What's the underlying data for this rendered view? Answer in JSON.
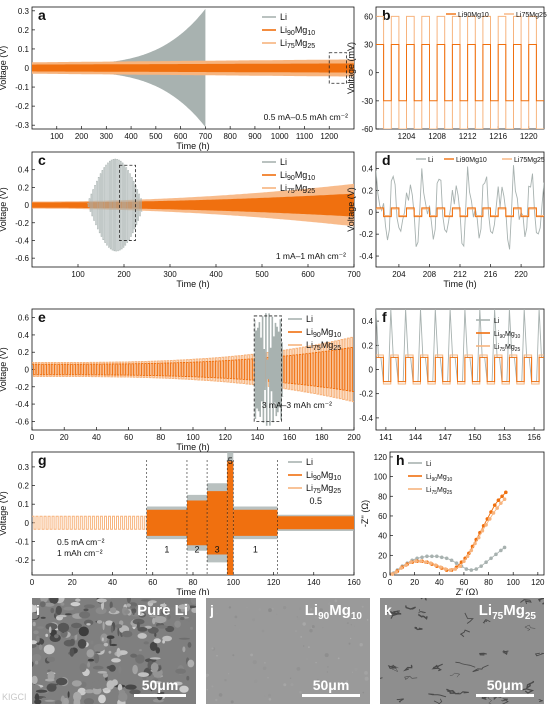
{
  "colors": {
    "li": "#a8b2b0",
    "mg10": "#f0700f",
    "mg25": "#f7b47e",
    "dash": "#222222"
  },
  "chart_data": [
    {
      "id": "a",
      "type": "line",
      "title": "",
      "xlabel": "Time (h)",
      "ylabel": "Voltage (V)",
      "xlim": [
        0,
        1300
      ],
      "ylim": [
        -0.32,
        0.32
      ],
      "xticks": [
        100,
        200,
        300,
        400,
        500,
        600,
        700,
        800,
        900,
        1000,
        1100,
        1200
      ],
      "yticks": [
        -0.3,
        -0.2,
        -0.1,
        0.0,
        0.1,
        0.2,
        0.3
      ],
      "series": [
        {
          "name": "Li",
          "li_end_h": 700
        },
        {
          "name": "Li90Mg10"
        },
        {
          "name": "Li75Mg25"
        }
      ],
      "annotations": [
        "0.5 mA–0.5 mAh cm⁻²"
      ],
      "inset_box_x": [
        1200,
        1270
      ],
      "legend": "top-right"
    },
    {
      "id": "b",
      "type": "line",
      "title": "",
      "xlabel": "",
      "ylabel": "Voltage (mV)",
      "xlim": [
        1200,
        1222
      ],
      "ylim": [
        -60,
        70
      ],
      "xticks": [
        1204,
        1208,
        1212,
        1216,
        1220
      ],
      "yticks": [
        -60,
        -30,
        0,
        30,
        60
      ],
      "series": [
        {
          "name": "Li90Mg10",
          "amplitude": 30
        },
        {
          "name": "Li75Mg25",
          "amplitude": 60
        }
      ],
      "legend": "top"
    },
    {
      "id": "c",
      "type": "line",
      "title": "",
      "xlabel": "Time (h)",
      "ylabel": "Voltage (V)",
      "xlim": [
        0,
        700
      ],
      "ylim": [
        -0.7,
        0.6
      ],
      "xticks": [
        100,
        200,
        300,
        400,
        500,
        600,
        700
      ],
      "yticks": [
        -0.6,
        -0.4,
        -0.2,
        0.0,
        0.2,
        0.4
      ],
      "series": [
        {
          "name": "Li",
          "li_end_h": 240
        },
        {
          "name": "Li90Mg10"
        },
        {
          "name": "Li75Mg25"
        }
      ],
      "annotations": [
        "1 mA–1 mAh cm⁻²"
      ],
      "inset_box_x": [
        190,
        225
      ],
      "legend": "top-right"
    },
    {
      "id": "d",
      "type": "line",
      "title": "",
      "xlabel": "Time (h)",
      "ylabel": "Voltage (V)",
      "xlim": [
        201,
        223
      ],
      "ylim": [
        -0.5,
        0.55
      ],
      "xticks": [
        204,
        208,
        212,
        216,
        220
      ],
      "yticks": [
        -0.4,
        -0.2,
        0.0,
        0.2,
        0.4
      ],
      "series": [
        {
          "name": "Li"
        },
        {
          "name": "Li90Mg10",
          "amplitude": 0.04
        },
        {
          "name": "Li75Mg25",
          "amplitude": 0.03
        }
      ],
      "legend": "top"
    },
    {
      "id": "e",
      "type": "line",
      "title": "",
      "xlabel": "Time (h)",
      "ylabel": "Voltage (V)",
      "xlim": [
        0,
        200
      ],
      "ylim": [
        -0.7,
        0.7
      ],
      "xticks": [
        0,
        20,
        40,
        60,
        80,
        100,
        120,
        140,
        160,
        180,
        200
      ],
      "yticks": [
        -0.6,
        -0.4,
        -0.2,
        0.0,
        0.2,
        0.4,
        0.6
      ],
      "series": [
        {
          "name": "Li"
        },
        {
          "name": "Li90Mg10"
        },
        {
          "name": "Li75Mg25"
        }
      ],
      "annotations": [
        "3 mA–3 mAh cm⁻²"
      ],
      "inset_box_x": [
        138,
        155
      ],
      "legend": "top-right"
    },
    {
      "id": "f",
      "type": "line",
      "title": "",
      "xlabel": "",
      "ylabel": "",
      "xlim": [
        140,
        157
      ],
      "ylim": [
        -0.5,
        0.5
      ],
      "xticks": [
        141,
        144,
        147,
        150,
        153,
        156
      ],
      "yticks": [
        -0.4,
        -0.2,
        0.0,
        0.2,
        0.4
      ],
      "series": [
        {
          "name": "Li"
        },
        {
          "name": "Li90Mg10",
          "amplitude": 0.1
        },
        {
          "name": "Li75Mg25",
          "amplitude": 0.12
        }
      ],
      "legend": "top-right"
    },
    {
      "id": "g",
      "type": "line",
      "title": "",
      "xlabel": "Time (h)",
      "ylabel": "Voltage (V)",
      "xlim": [
        0,
        160
      ],
      "ylim": [
        -0.28,
        0.38
      ],
      "xticks": [
        0,
        20,
        40,
        60,
        80,
        100,
        120,
        140,
        160
      ],
      "yticks": [
        -0.2,
        -0.1,
        0.0,
        0.1,
        0.2,
        0.3
      ],
      "series": [
        {
          "name": "Li"
        },
        {
          "name": "Li90Mg10"
        },
        {
          "name": "Li75Mg25"
        }
      ],
      "rate_steps": [
        {
          "label": "1",
          "x": [
            57,
            77
          ],
          "amp": 0.07
        },
        {
          "label": "2",
          "x": [
            77,
            87
          ],
          "amp": 0.12
        },
        {
          "label": "3",
          "x": [
            87,
            97
          ],
          "amp": 0.17
        },
        {
          "label": "5",
          "x": [
            97,
            100
          ],
          "amp": 0.33
        },
        {
          "label": "1",
          "x": [
            100,
            122
          ],
          "amp": 0.07
        },
        {
          "label": "0.5",
          "x": [
            122,
            160
          ],
          "amp": 0.035
        }
      ],
      "base": {
        "x": [
          0,
          57
        ],
        "amp": 0.035
      },
      "annotations": [
        "0.5 mA cm⁻²",
        "1 mAh cm⁻²"
      ],
      "legend": "top-right"
    },
    {
      "id": "h",
      "type": "scatter",
      "title": "",
      "xlabel": "Z' (Ω)",
      "ylabel": "-Z'' (Ω)",
      "xlim": [
        0,
        125
      ],
      "ylim": [
        0,
        125
      ],
      "xticks": [
        0,
        20,
        40,
        60,
        80,
        100,
        120
      ],
      "yticks": [
        0,
        20,
        40,
        60,
        80,
        100,
        120
      ],
      "series": [
        {
          "name": "Li",
          "x": [
            3,
            6,
            10,
            14,
            18,
            22,
            26,
            30,
            34,
            38,
            42,
            46,
            50,
            54,
            58,
            62,
            66,
            70,
            74,
            78,
            82,
            86,
            90,
            93
          ],
          "y": [
            2,
            5,
            9,
            12,
            15,
            17,
            18,
            19,
            19,
            19,
            18,
            17,
            15,
            12,
            9,
            6,
            5,
            6,
            9,
            13,
            17,
            21,
            25,
            28
          ]
        },
        {
          "name": "Li90Mg10",
          "x": [
            2,
            6,
            10,
            14,
            18,
            22,
            26,
            30,
            34,
            38,
            42,
            46,
            50,
            54,
            58,
            61,
            64,
            67,
            70,
            73,
            76,
            79,
            82,
            85,
            88,
            91,
            94
          ],
          "y": [
            1,
            4,
            8,
            11,
            13,
            14,
            14,
            13,
            11,
            9,
            7,
            5,
            5,
            8,
            13,
            17,
            22,
            29,
            36,
            43,
            50,
            57,
            64,
            71,
            76,
            80,
            84
          ]
        },
        {
          "name": "Li75Mg25",
          "x": [
            2,
            5,
            9,
            13,
            17,
            21,
            25,
            29,
            33,
            37,
            41,
            45,
            49,
            53,
            57,
            60,
            63,
            66,
            69,
            72,
            75,
            78,
            81,
            84,
            87,
            90,
            93
          ],
          "y": [
            1,
            3,
            7,
            10,
            13,
            14,
            14,
            13,
            12,
            10,
            8,
            6,
            5,
            6,
            9,
            14,
            19,
            25,
            32,
            38,
            45,
            51,
            57,
            63,
            68,
            73,
            77
          ]
        }
      ],
      "legend": "top-left"
    }
  ],
  "legend": {
    "li": "Li",
    "mg10_base": "Li",
    "mg10_sub1": "90",
    "mg10_mid": "Mg",
    "mg10_sub2": "10",
    "mg25_base": "Li",
    "mg25_sub1": "75",
    "mg25_mid": "Mg",
    "mg25_sub2": "25"
  },
  "sem": {
    "i": {
      "label": "i",
      "title": "Pure Li",
      "scale": "50μm"
    },
    "j": {
      "label": "j",
      "title_base": "Li",
      "title_sub1": "90",
      "title_mid": "Mg",
      "title_sub2": "10",
      "scale": "50μm"
    },
    "k": {
      "label": "k",
      "title_base": "Li",
      "title_sub1": "75",
      "title_mid": "Mg",
      "title_sub2": "25",
      "scale": "50μm"
    }
  },
  "watermark": "KIGCI"
}
